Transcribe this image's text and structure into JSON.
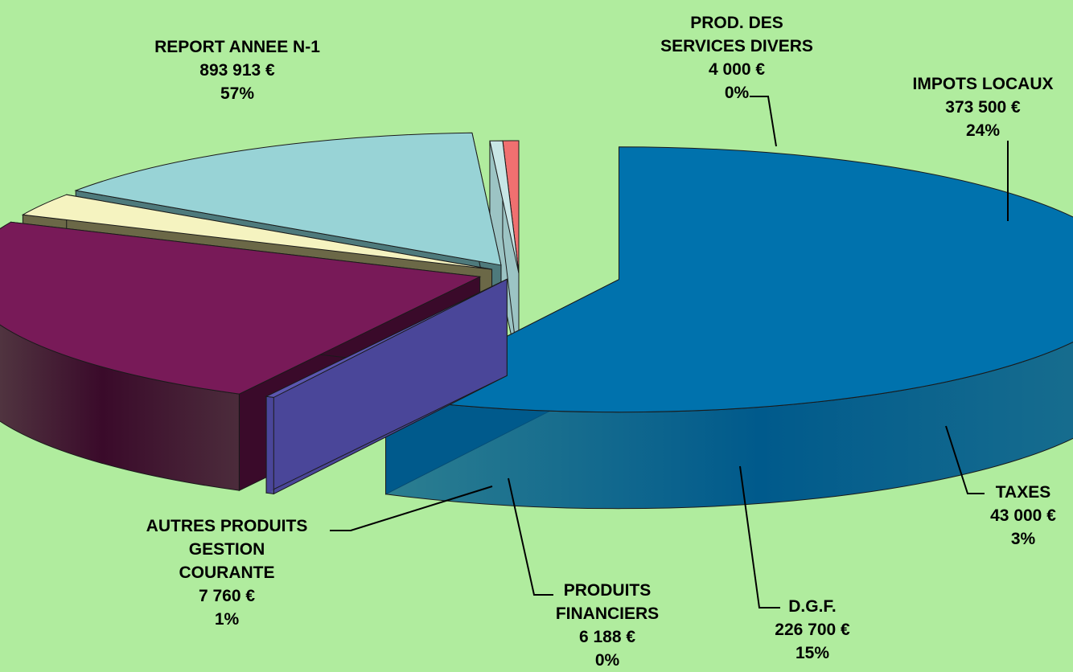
{
  "chart_data": {
    "type": "pie",
    "three_d": true,
    "exploded": true,
    "background_color": "#b0ec9e",
    "slices": [
      {
        "label": "REPORT ANNEE N-1",
        "label_lines": [
          "REPORT ANNEE N-1"
        ],
        "value": 893913,
        "value_text": "893 913 €",
        "percent": "57%",
        "color": "#0072ad",
        "side_color": "#005a8c"
      },
      {
        "label": "PROD. DES SERVICES DIVERS",
        "label_lines": [
          "PROD. DES",
          "SERVICES DIVERS"
        ],
        "value": 4000,
        "value_text": "4 000 €",
        "percent": "0%",
        "color": "#5b56b0",
        "side_color": "#4a4699"
      },
      {
        "label": "IMPOTS LOCAUX",
        "label_lines": [
          "IMPOTS LOCAUX"
        ],
        "value": 373500,
        "value_text": "373 500 €",
        "percent": "24%",
        "color": "#781a58",
        "side_color": "#3a0a2a"
      },
      {
        "label": "TAXES",
        "label_lines": [
          "TAXES"
        ],
        "value": 43000,
        "value_text": "43 000 €",
        "percent": "3%",
        "color": "#f5f3c0",
        "side_color": "#6b6847"
      },
      {
        "label": "D.G.F.",
        "label_lines": [
          "D.G.F."
        ],
        "value": 226700,
        "value_text": "226 700 €",
        "percent": "15%",
        "color": "#98d3d6",
        "side_color": "#4e7a7c"
      },
      {
        "label": "PRODUITS FINANCIERS",
        "label_lines": [
          "PRODUITS",
          "FINANCIERS"
        ],
        "value": 6188,
        "value_text": "6 188 €",
        "percent": "0%",
        "color": "#c8e6e6",
        "side_color": "#9cc4c4"
      },
      {
        "label": "AUTRES PRODUITS GESTION COURANTE",
        "label_lines": [
          "AUTRES PRODUITS",
          "GESTION",
          "COURANTE"
        ],
        "value": 7760,
        "value_text": "7 760 €",
        "percent": "1%",
        "color": "#f07070",
        "side_color": "#d04a4a"
      }
    ]
  }
}
